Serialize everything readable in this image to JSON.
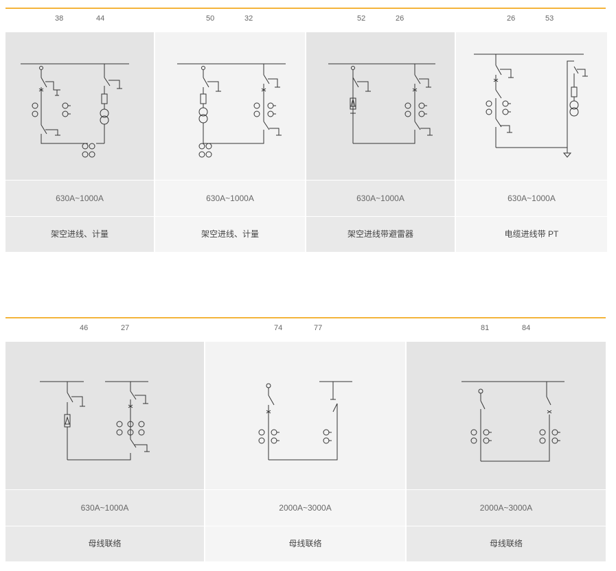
{
  "top_row": [
    {
      "num_a": "38",
      "num_b": "44",
      "rating": "630A~1000A",
      "label": "架空进线、计量"
    },
    {
      "num_a": "50",
      "num_b": "32",
      "rating": "630A~1000A",
      "label": "架空进线、计量"
    },
    {
      "num_a": "52",
      "num_b": "26",
      "rating": "630A~1000A",
      "label": "架空进线带避雷器"
    },
    {
      "num_a": "26",
      "num_b": "53",
      "rating": "630A~1000A",
      "label": "电缆进线带 PT"
    }
  ],
  "bottom_row": [
    {
      "num_a": "46",
      "num_b": "27",
      "rating": "630A~1000A",
      "label": "母线联络"
    },
    {
      "num_a": "74",
      "num_b": "77",
      "rating": "2000A~3000A",
      "label": "母线联络"
    },
    {
      "num_a": "81",
      "num_b": "84",
      "rating": "2000A~3000A",
      "label": "母线联络"
    }
  ],
  "colors": {
    "accent_rule": "#f4b43a",
    "cell_dark": "#e4e4e4",
    "cell_light": "#f3f3f3"
  }
}
